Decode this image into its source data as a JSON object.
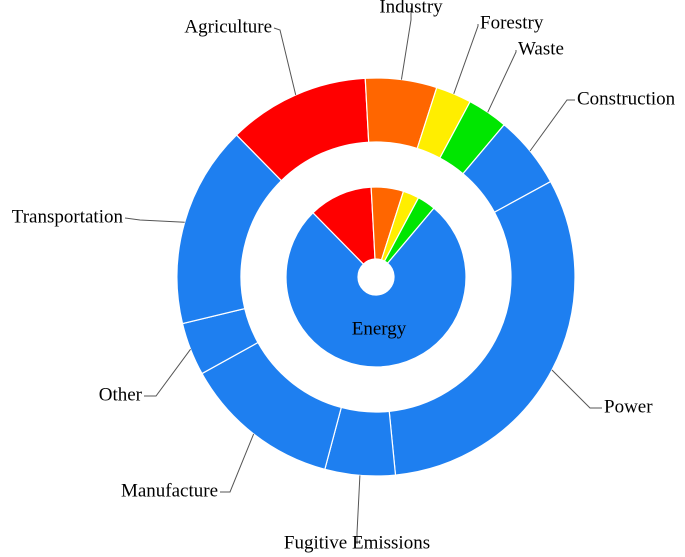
{
  "chart_data": {
    "type": "sunburst",
    "start_angle": 315.5,
    "outer": {
      "labels": [
        "Agriculture",
        "Industry",
        "Forestry",
        "Waste",
        "Construction",
        "Power",
        "Fugitive Emissions",
        "Manufacture",
        "Other",
        "Transportation"
      ],
      "values": [
        11.5,
        5.8,
        2.9,
        3.3,
        5.9,
        31.4,
        5.7,
        12.8,
        4.3,
        16.4
      ],
      "colors": [
        "#ff0000",
        "#ff6600",
        "#ffee00",
        "#00e600",
        "#1e7ff0",
        "#1e7ff0",
        "#1e7ff0",
        "#1e7ff0",
        "#1e7ff0",
        "#1e7ff0"
      ]
    },
    "inner": {
      "labels": [
        null,
        null,
        null,
        null,
        "Energy"
      ],
      "values": [
        11.5,
        5.8,
        2.9,
        3.3,
        76.5
      ],
      "colors": [
        "#ff0000",
        "#ff6600",
        "#ffee00",
        "#00e600",
        "#1e7ff0"
      ]
    }
  }
}
